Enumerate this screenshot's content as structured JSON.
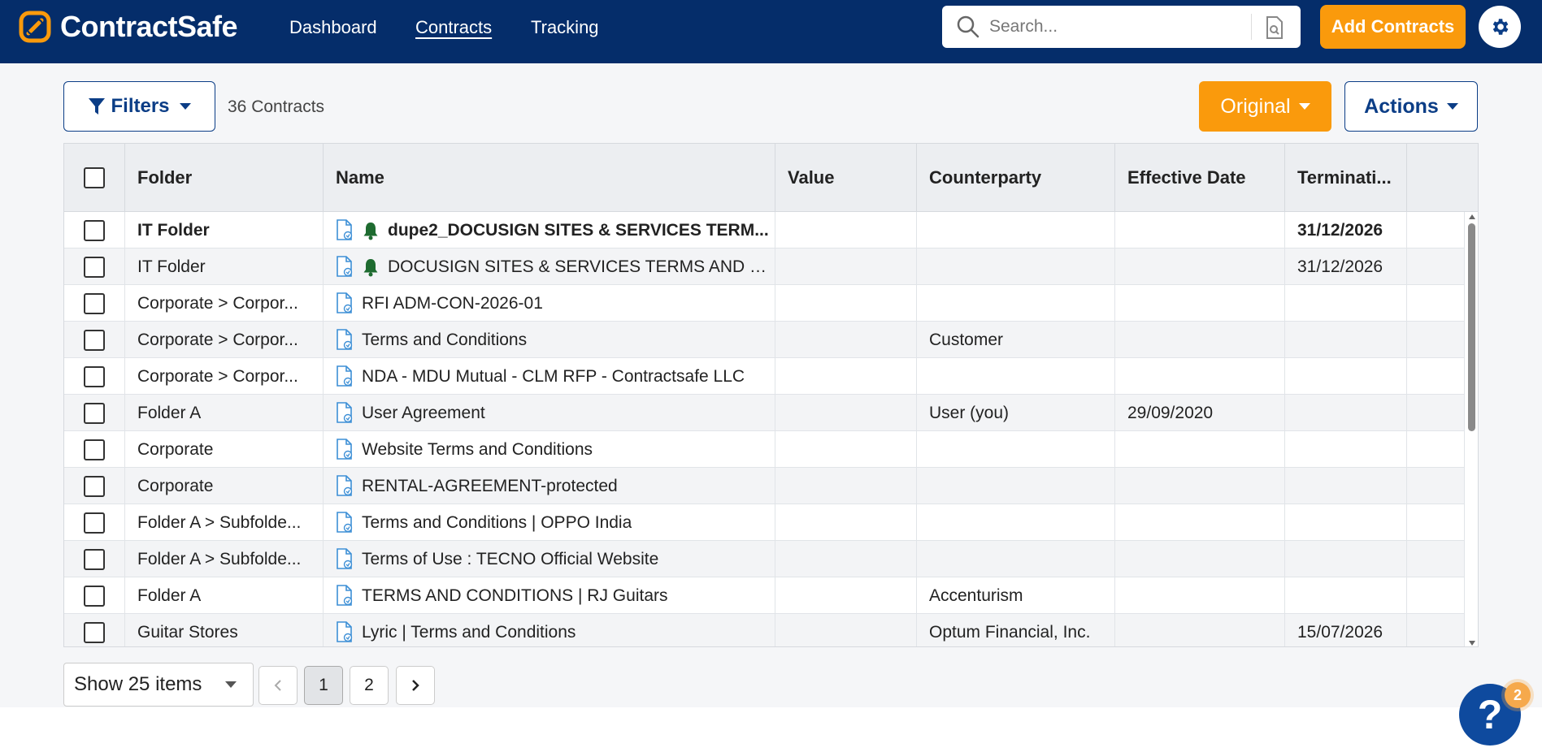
{
  "app": {
    "brand": "ContractSafe",
    "nav": [
      {
        "label": "Dashboard",
        "active": false
      },
      {
        "label": "Contracts",
        "active": true
      },
      {
        "label": "Tracking",
        "active": false
      }
    ],
    "search_placeholder": "Search...",
    "add_button": "Add Contracts"
  },
  "toolbar": {
    "filters_label": "Filters",
    "count_text": "36 Contracts",
    "view_label": "Original",
    "actions_label": "Actions"
  },
  "table": {
    "columns": [
      "Folder",
      "Name",
      "Value",
      "Counterparty",
      "Effective Date",
      "Terminati..."
    ],
    "rows": [
      {
        "folder": "IT Folder",
        "name": "dupe2_DOCUSIGN SITES & SERVICES TERM...",
        "value": "",
        "counterparty": "",
        "effective": "",
        "termination": "31/12/2026",
        "bell": true,
        "bold": true
      },
      {
        "folder": "IT Folder",
        "name": "DOCUSIGN SITES & SERVICES TERMS AND CO...",
        "value": "",
        "counterparty": "",
        "effective": "",
        "termination": "31/12/2026",
        "bell": true,
        "bold": false
      },
      {
        "folder": "Corporate > Corpor...",
        "name": "RFI ADM-CON-2026-01",
        "value": "",
        "counterparty": "",
        "effective": "",
        "termination": "",
        "bell": false,
        "bold": false
      },
      {
        "folder": "Corporate > Corpor...",
        "name": "Terms and Conditions",
        "value": "",
        "counterparty": "Customer",
        "effective": "",
        "termination": "",
        "bell": false,
        "bold": false
      },
      {
        "folder": "Corporate > Corpor...",
        "name": "NDA - MDU Mutual - CLM RFP - Contractsafe LLC",
        "value": "",
        "counterparty": "",
        "effective": "",
        "termination": "",
        "bell": false,
        "bold": false
      },
      {
        "folder": "Folder A",
        "name": "User Agreement",
        "value": "",
        "counterparty": "User (you)",
        "effective": "29/09/2020",
        "termination": "",
        "bell": false,
        "bold": false
      },
      {
        "folder": "Corporate",
        "name": "Website Terms and Conditions",
        "value": "",
        "counterparty": "",
        "effective": "",
        "termination": "",
        "bell": false,
        "bold": false
      },
      {
        "folder": "Corporate",
        "name": "RENTAL-AGREEMENT-protected",
        "value": "",
        "counterparty": "",
        "effective": "",
        "termination": "",
        "bell": false,
        "bold": false
      },
      {
        "folder": "Folder A > Subfolde...",
        "name": "Terms and Conditions | OPPO India",
        "value": "",
        "counterparty": "",
        "effective": "",
        "termination": "",
        "bell": false,
        "bold": false
      },
      {
        "folder": "Folder A > Subfolde...",
        "name": "Terms of Use : TECNO Official Website",
        "value": "",
        "counterparty": "",
        "effective": "",
        "termination": "",
        "bell": false,
        "bold": false
      },
      {
        "folder": "Folder A",
        "name": "TERMS AND CONDITIONS | RJ Guitars",
        "value": "",
        "counterparty": "Accenturism",
        "effective": "",
        "termination": "",
        "bell": false,
        "bold": false
      },
      {
        "folder": "Guitar Stores",
        "name": "Lyric | Terms and Conditions",
        "value": "",
        "counterparty": "Optum Financial, Inc.",
        "effective": "",
        "termination": "15/07/2026",
        "bell": false,
        "bold": false
      }
    ]
  },
  "pager": {
    "page_size_label": "Show 25 items",
    "pages": [
      "1",
      "2"
    ],
    "current_page": "1"
  },
  "help": {
    "label": "?",
    "badge_count": "2"
  },
  "colors": {
    "navbar": "#052d6a",
    "accent_orange": "#fa9a0c",
    "primary_blue": "#0b3d86",
    "bell_green": "#1e6b30",
    "file_icon_blue": "#3d8fd6"
  }
}
